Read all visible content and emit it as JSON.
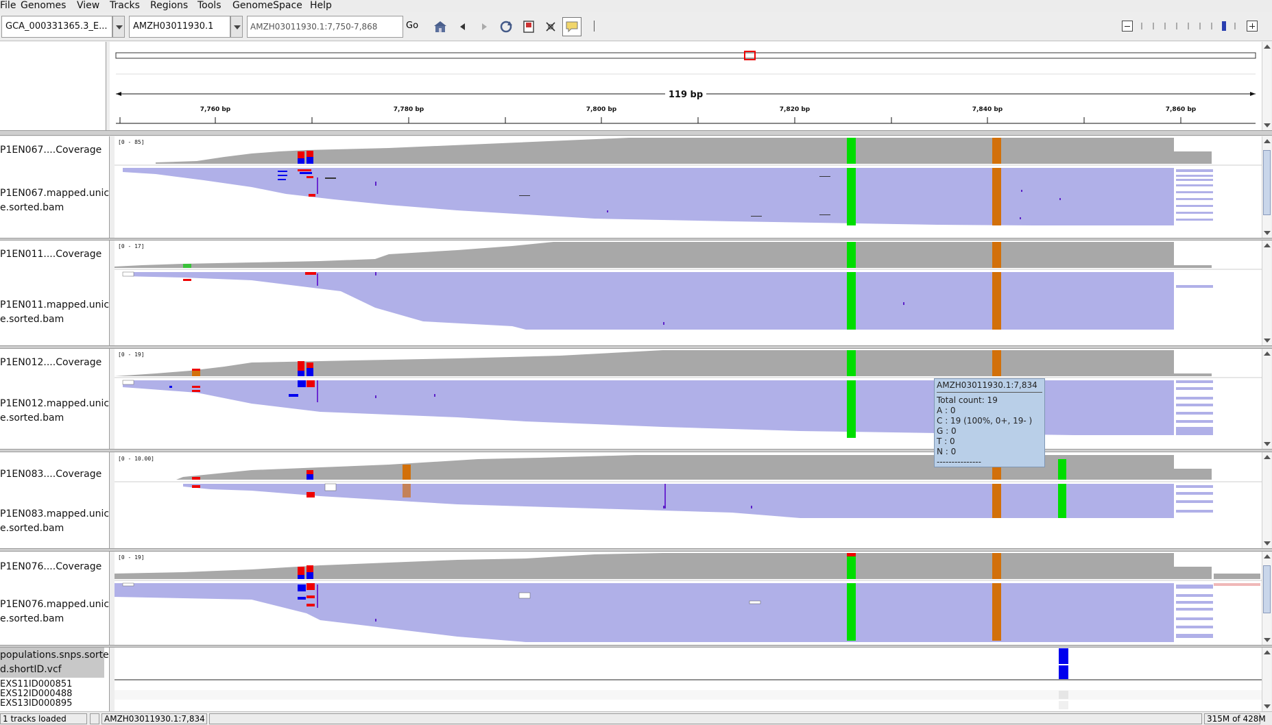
{
  "menu": [
    "File",
    "Genomes",
    "View",
    "Tracks",
    "Regions",
    "Tools",
    "GenomeSpace",
    "Help"
  ],
  "toolbar": {
    "genome": "GCA_000331365.3_E...",
    "chromosome": "AMZH03011930.1",
    "locus": "AMZH03011930.1:7,750-7,868",
    "go": "Go"
  },
  "ruler": {
    "span_label": "119 bp",
    "ticks": [
      "7,760 bp",
      "7,780 bp",
      "7,800 bp",
      "7,820 bp",
      "7,840 bp",
      "7,860 bp"
    ]
  },
  "tracks": [
    {
      "cov": "P1EN067....Coverage",
      "bam1": "P1EN067.mapped.unic",
      "bam2": "e.sorted.bam",
      "range": "[0 - 85]"
    },
    {
      "cov": "P1EN011....Coverage",
      "bam1": "P1EN011.mapped.unic",
      "bam2": "e.sorted.bam",
      "range": "[0 - 17]"
    },
    {
      "cov": "P1EN012....Coverage",
      "bam1": "P1EN012.mapped.unic",
      "bam2": "e.sorted.bam",
      "range": "[0 - 19]"
    },
    {
      "cov": "P1EN083....Coverage",
      "bam1": "P1EN083.mapped.unic",
      "bam2": "e.sorted.bam",
      "range": "[0 - 10.00]"
    },
    {
      "cov": "P1EN076....Coverage",
      "bam1": "P1EN076.mapped.unic",
      "bam2": "e.sorted.bam",
      "range": "[0 - 19]"
    }
  ],
  "vcf": {
    "name1": "populations.snps.sorte",
    "name2": "d.shortID.vcf",
    "samples": [
      "EXS11ID000851",
      "EXS12ID000488",
      "EXS13ID000895"
    ]
  },
  "popup": {
    "title": "AMZH03011930.1:7,834",
    "lines": [
      "Total count: 19",
      "A : 0",
      "C : 19 (100%, 0+, 19- )",
      "G : 0",
      "T : 0",
      "N : 0",
      "---------------"
    ]
  },
  "status": {
    "loaded": "1 tracks loaded",
    "position": "AMZH03011930.1:7,834",
    "memory": "315M of 428M"
  },
  "colors": {
    "coverage": "#a8a8a8",
    "reads": "#b0b0e8",
    "A": "#00dd00",
    "C": "#0000ee",
    "G": "#d2700a",
    "T": "#ee0000"
  }
}
